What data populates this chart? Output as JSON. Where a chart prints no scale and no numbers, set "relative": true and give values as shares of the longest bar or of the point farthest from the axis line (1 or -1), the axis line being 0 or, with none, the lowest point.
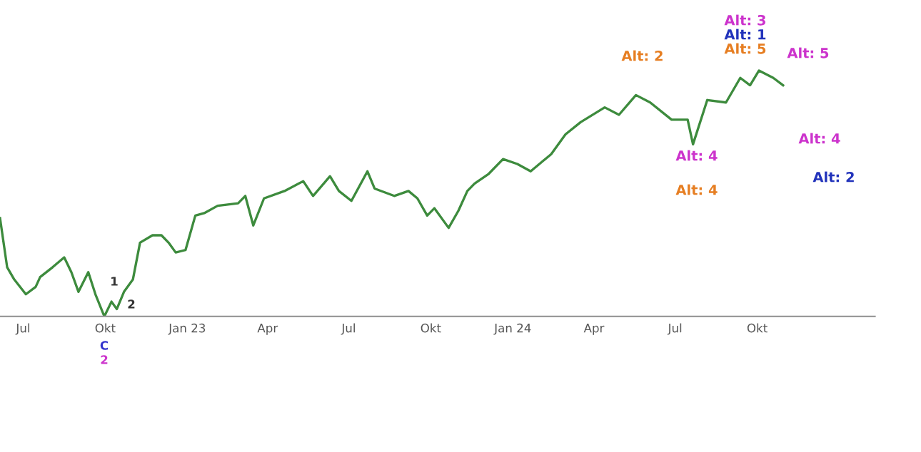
{
  "chart_data": {
    "type": "line",
    "relative": true,
    "x": [
      "2022-06-05",
      "2022-06-13",
      "2022-06-21",
      "2022-07-04",
      "2022-07-15",
      "2022-07-20",
      "2022-08-03",
      "2022-08-16",
      "2022-08-24",
      "2022-09-01",
      "2022-09-12",
      "2022-09-20",
      "2022-09-30",
      "2022-10-08",
      "2022-10-14",
      "2022-10-22",
      "2022-11-01",
      "2022-11-09",
      "2022-11-23",
      "2022-12-03",
      "2022-12-11",
      "2022-12-19",
      "2022-12-30",
      "2023-01-10",
      "2023-01-20",
      "2023-02-04",
      "2023-02-27",
      "2023-03-07",
      "2023-03-16",
      "2023-03-28",
      "2023-04-20",
      "2023-05-11",
      "2023-05-22",
      "2023-06-10",
      "2023-06-20",
      "2023-07-04",
      "2023-07-22",
      "2023-07-30",
      "2023-08-21",
      "2023-09-06",
      "2023-09-16",
      "2023-09-27",
      "2023-10-05",
      "2023-10-21",
      "2023-11-01",
      "2023-11-11",
      "2023-11-19",
      "2023-12-05",
      "2023-12-21",
      "2024-01-06",
      "2024-01-21",
      "2024-02-13",
      "2024-02-29",
      "2024-03-17",
      "2024-04-13",
      "2024-04-29",
      "2024-05-18",
      "2024-06-03",
      "2024-06-27",
      "2024-07-15",
      "2024-07-21",
      "2024-08-06",
      "2024-08-27",
      "2024-09-12",
      "2024-09-23",
      "2024-10-03",
      "2024-10-19",
      "2024-10-30"
    ],
    "series": [
      {
        "color": "#3d8b3d",
        "values": [
          0.4,
          0.2,
          0.15,
          0.09,
          0.12,
          0.16,
          0.2,
          0.24,
          0.18,
          0.1,
          0.18,
          0.09,
          0,
          0.06,
          0.03,
          0.1,
          0.15,
          0.3,
          0.33,
          0.33,
          0.3,
          0.26,
          0.27,
          0.41,
          0.42,
          0.45,
          0.46,
          0.49,
          0.37,
          0.48,
          0.51,
          0.55,
          0.49,
          0.57,
          0.51,
          0.47,
          0.59,
          0.52,
          0.49,
          0.51,
          0.48,
          0.41,
          0.44,
          0.36,
          0.43,
          0.51,
          0.54,
          0.58,
          0.64,
          0.62,
          0.59,
          0.66,
          0.74,
          0.79,
          0.85,
          0.82,
          0.9,
          0.87,
          0.8,
          0.8,
          0.7,
          0.88,
          0.87,
          0.97,
          0.94,
          1,
          0.97,
          0.94
        ]
      }
    ],
    "xlim": [
      "2022-06-05",
      "2025-02-10"
    ],
    "xticks": [
      {
        "value": "2022-07-01",
        "label": "Jul"
      },
      {
        "value": "2022-10-01",
        "label": "Okt"
      },
      {
        "value": "2023-01-01",
        "label": "Jan 23"
      },
      {
        "value": "2023-04-01",
        "label": "Apr"
      },
      {
        "value": "2023-07-01",
        "label": "Jul"
      },
      {
        "value": "2023-10-01",
        "label": "Okt"
      },
      {
        "value": "2024-01-01",
        "label": "Jan 24"
      },
      {
        "value": "2024-04-01",
        "label": "Apr"
      },
      {
        "value": "2024-07-01",
        "label": "Jul"
      },
      {
        "value": "2024-10-01",
        "label": "Okt"
      }
    ],
    "tick_labels": "x",
    "annotations": [
      "C",
      "2",
      "1",
      "2",
      "Alt: 2",
      "Alt: 3",
      "Alt: 1",
      "Alt: 5",
      "Alt: 5",
      "Alt: 4",
      "Alt: 4",
      "Alt: 4",
      "Alt: 2"
    ]
  }
}
